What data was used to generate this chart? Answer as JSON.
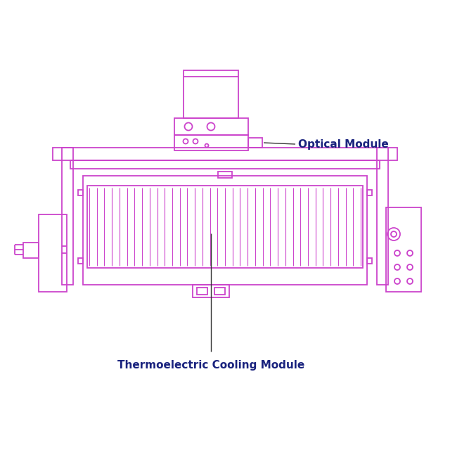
{
  "bg_color": "#ffffff",
  "draw_color": "#cc44cc",
  "label_color": "#1a237e",
  "annot_color": "#333333",
  "label_optical": "Optical Module",
  "label_thermal": "Thermoelectric Cooling Module",
  "figsize": [
    6.4,
    6.4
  ],
  "dpi": 100
}
